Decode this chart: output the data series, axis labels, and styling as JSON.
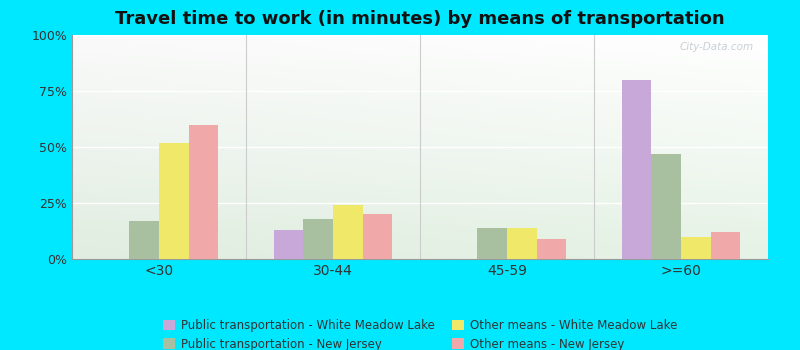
{
  "title": "Travel time to work (in minutes) by means of transportation",
  "categories": [
    "<30",
    "30-44",
    "45-59",
    ">=60"
  ],
  "series": [
    {
      "label": "Public transportation - White Meadow Lake",
      "color": "#c8a8d8",
      "values": [
        0,
        13,
        0,
        80
      ]
    },
    {
      "label": "Public transportation - New Jersey",
      "color": "#a8c0a0",
      "values": [
        17,
        18,
        14,
        47
      ]
    },
    {
      "label": "Other means - White Meadow Lake",
      "color": "#f0e868",
      "values": [
        52,
        24,
        14,
        10
      ]
    },
    {
      "label": "Other means - New Jersey",
      "color": "#f0a8a8",
      "values": [
        60,
        20,
        9,
        12
      ]
    }
  ],
  "yticks": [
    0,
    25,
    50,
    75,
    100
  ],
  "yticklabels": [
    "0%",
    "25%",
    "50%",
    "75%",
    "100%"
  ],
  "ylim": [
    0,
    100
  ],
  "outer_bg": "#00e8ff",
  "bar_width": 0.17,
  "title_fontsize": 13,
  "legend_fontsize": 8.5,
  "watermark": "City-Data.com"
}
